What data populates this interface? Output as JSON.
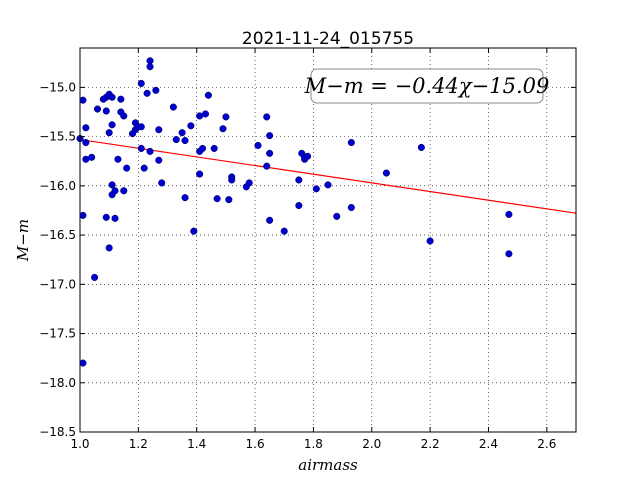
{
  "chart_data": {
    "type": "scatter",
    "title": "2021-11-24_015755",
    "xlabel": "airmass",
    "ylabel": "M−m",
    "xlim": [
      1.0,
      2.7
    ],
    "ylim": [
      -18.5,
      -14.6
    ],
    "x_ticks": [
      "1.0",
      "1.2",
      "1.4",
      "1.6",
      "1.8",
      "2.0",
      "2.2",
      "2.4",
      "2.6"
    ],
    "y_ticks": [
      "−18.5",
      "−18.0",
      "−17.5",
      "−17.0",
      "−16.5",
      "−16.0",
      "−15.5",
      "−15.0"
    ],
    "x_tick_values": [
      1.0,
      1.2,
      1.4,
      1.6,
      1.8,
      2.0,
      2.2,
      2.4,
      2.6
    ],
    "y_tick_values": [
      -18.5,
      -18.0,
      -17.5,
      -17.0,
      -16.5,
      -16.0,
      -15.5,
      -15.0
    ],
    "grid": true,
    "annotation": "M−m = −0.44χ−15.09",
    "annotation_position": "top-right",
    "fit": {
      "slope": -0.44,
      "intercept": -15.09,
      "color": "#ff0000"
    },
    "marker_color": "#0000cc",
    "points": [
      [
        1.0,
        -15.52
      ],
      [
        1.01,
        -15.13
      ],
      [
        1.01,
        -16.3
      ],
      [
        1.01,
        -17.8
      ],
      [
        1.02,
        -15.41
      ],
      [
        1.02,
        -15.56
      ],
      [
        1.02,
        -15.73
      ],
      [
        1.04,
        -15.71
      ],
      [
        1.05,
        -16.93
      ],
      [
        1.06,
        -15.22
      ],
      [
        1.08,
        -15.12
      ],
      [
        1.09,
        -15.1
      ],
      [
        1.1,
        -15.07
      ],
      [
        1.09,
        -15.24
      ],
      [
        1.09,
        -16.32
      ],
      [
        1.1,
        -16.63
      ],
      [
        1.11,
        -15.38
      ],
      [
        1.11,
        -15.1
      ],
      [
        1.1,
        -15.46
      ],
      [
        1.11,
        -16.09
      ],
      [
        1.12,
        -16.05
      ],
      [
        1.12,
        -16.33
      ],
      [
        1.11,
        -15.99
      ],
      [
        1.13,
        -15.73
      ],
      [
        1.14,
        -15.25
      ],
      [
        1.14,
        -15.12
      ],
      [
        1.15,
        -15.29
      ],
      [
        1.15,
        -16.05
      ],
      [
        1.16,
        -15.82
      ],
      [
        1.18,
        -15.47
      ],
      [
        1.19,
        -15.36
      ],
      [
        1.19,
        -15.43
      ],
      [
        1.2,
        -15.4
      ],
      [
        1.21,
        -15.4
      ],
      [
        1.21,
        -15.62
      ],
      [
        1.21,
        -14.96
      ],
      [
        1.22,
        -15.82
      ],
      [
        1.23,
        -15.06
      ],
      [
        1.24,
        -14.73
      ],
      [
        1.24,
        -14.79
      ],
      [
        1.24,
        -15.65
      ],
      [
        1.26,
        -15.03
      ],
      [
        1.27,
        -15.74
      ],
      [
        1.27,
        -15.43
      ],
      [
        1.28,
        -15.97
      ],
      [
        1.32,
        -15.2
      ],
      [
        1.33,
        -15.53
      ],
      [
        1.35,
        -15.46
      ],
      [
        1.36,
        -16.12
      ],
      [
        1.36,
        -15.54
      ],
      [
        1.38,
        -15.39
      ],
      [
        1.39,
        -16.46
      ],
      [
        1.41,
        -15.65
      ],
      [
        1.41,
        -15.88
      ],
      [
        1.41,
        -15.29
      ],
      [
        1.42,
        -15.62
      ],
      [
        1.43,
        -15.27
      ],
      [
        1.44,
        -15.08
      ],
      [
        1.46,
        -15.62
      ],
      [
        1.47,
        -16.13
      ],
      [
        1.49,
        -15.42
      ],
      [
        1.5,
        -15.3
      ],
      [
        1.51,
        -16.14
      ],
      [
        1.52,
        -15.91
      ],
      [
        1.52,
        -15.94
      ],
      [
        1.57,
        -16.01
      ],
      [
        1.58,
        -15.97
      ],
      [
        1.61,
        -15.59
      ],
      [
        1.64,
        -15.3
      ],
      [
        1.64,
        -15.8
      ],
      [
        1.65,
        -15.67
      ],
      [
        1.65,
        -15.49
      ],
      [
        1.65,
        -16.35
      ],
      [
        1.7,
        -16.46
      ],
      [
        1.75,
        -16.2
      ],
      [
        1.75,
        -15.94
      ],
      [
        1.76,
        -15.67
      ],
      [
        1.77,
        -15.73
      ],
      [
        1.77,
        -15.71
      ],
      [
        1.78,
        -15.7
      ],
      [
        1.81,
        -16.03
      ],
      [
        1.85,
        -15.99
      ],
      [
        1.88,
        -16.31
      ],
      [
        1.93,
        -15.56
      ],
      [
        1.93,
        -16.22
      ],
      [
        2.05,
        -15.87
      ],
      [
        2.17,
        -15.61
      ],
      [
        2.2,
        -16.56
      ],
      [
        2.47,
        -16.29
      ],
      [
        2.47,
        -16.69
      ]
    ]
  }
}
